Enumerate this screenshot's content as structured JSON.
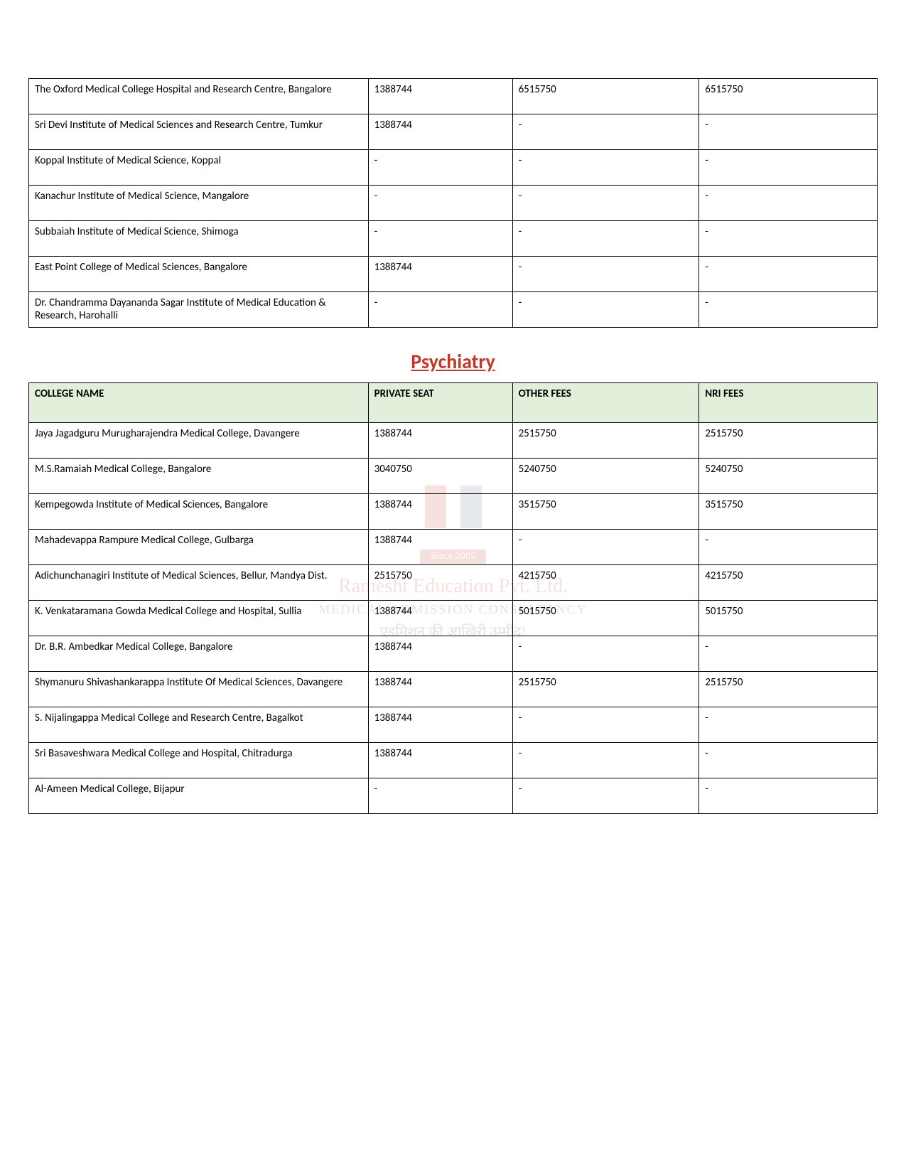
{
  "watermark": {
    "since": "Since 2005",
    "name": "Ramesht Education Pvt. Ltd.",
    "tagline": "MEDICAL ADMISSION CONSULTANCY",
    "hindi": "एडमिशन की आखिरी उम्मीद!"
  },
  "table1": {
    "columns": [
      "",
      "",
      "",
      ""
    ],
    "col_widths": [
      "40%",
      "17%",
      "22%",
      "21%"
    ],
    "rows": [
      [
        "The Oxford Medical College Hospital and Research Centre, Bangalore",
        "1388744",
        "6515750",
        "6515750"
      ],
      [
        "Sri Devi Institute of Medical Sciences and Research Centre, Tumkur",
        "1388744",
        "-",
        "-"
      ],
      [
        "Koppal Institute of Medical Science, Koppal",
        "-",
        "-",
        "-"
      ],
      [
        "Kanachur Institute of Medical Science, Mangalore",
        "-",
        "-",
        "-"
      ],
      [
        "Subbaiah Institute of Medical Science, Shimoga",
        "-",
        "-",
        "-"
      ],
      [
        "East Point College of Medical Sciences, Bangalore",
        "1388744",
        "-",
        "-"
      ],
      [
        "Dr. Chandramma Dayananda Sagar Institute of Medical Education & Research, Harohalli",
        "-",
        "-",
        "-"
      ]
    ]
  },
  "section2": {
    "heading": "Psychiatry",
    "heading_color": "#c0392b",
    "header_bg": "#e2efda"
  },
  "table2": {
    "columns": [
      "COLLEGE NAME",
      "PRIVATE SEAT",
      "OTHER FEES",
      "NRI FEES"
    ],
    "col_widths": [
      "40%",
      "17%",
      "22%",
      "21%"
    ],
    "rows": [
      [
        "Jaya Jagadguru Murugharajendra Medical College, Davangere",
        "1388744",
        "2515750",
        "2515750"
      ],
      [
        "M.S.Ramaiah Medical College, Bangalore",
        "3040750",
        "5240750",
        "5240750"
      ],
      [
        "Kempegowda Institute of Medical Sciences, Bangalore",
        "1388744",
        "3515750",
        "3515750"
      ],
      [
        "Mahadevappa Rampure Medical College, Gulbarga",
        "1388744",
        "-",
        "-"
      ],
      [
        "Adichunchanagiri Institute of Medical Sciences, Bellur, Mandya Dist.",
        "2515750",
        "4215750",
        "4215750"
      ],
      [
        "K. Venkataramana Gowda Medical College and Hospital, Sullia",
        "1388744",
        "5015750",
        "5015750"
      ],
      [
        "Dr. B.R. Ambedkar Medical College, Bangalore",
        "1388744",
        "-",
        "-"
      ],
      [
        "Shymanuru Shivashankarappa Institute Of Medical Sciences, Davangere",
        "1388744",
        "2515750",
        "2515750"
      ],
      [
        "S. Nijalingappa Medical College and Research Centre, Bagalkot",
        "1388744",
        "-",
        "-"
      ],
      [
        "Sri Basaveshwara Medical College and Hospital, Chitradurga",
        "1388744",
        "-",
        "-"
      ],
      [
        "Al-Ameen Medical College, Bijapur",
        "-",
        "-",
        "-"
      ]
    ]
  }
}
